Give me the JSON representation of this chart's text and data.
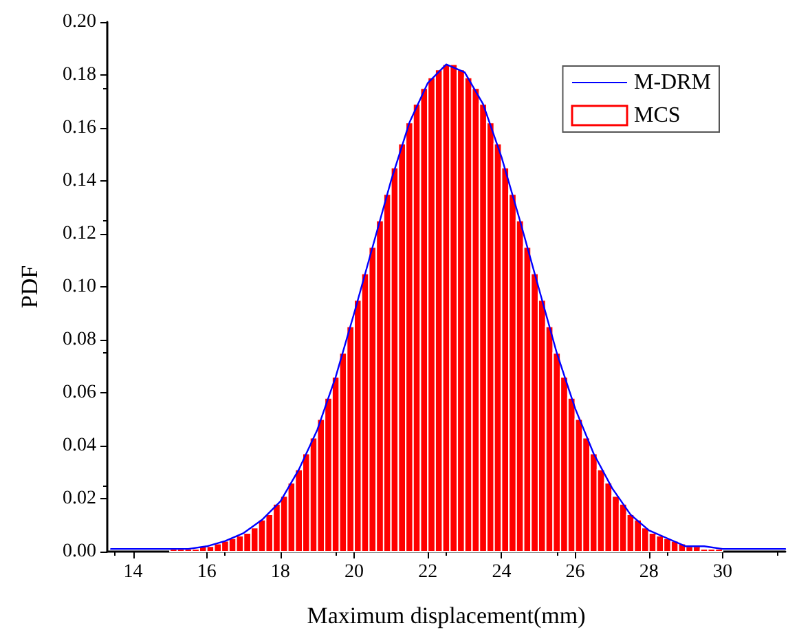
{
  "chart_data": {
    "type": "histogram",
    "xlabel": "Maximum displacement(mm)",
    "ylabel": "PDF",
    "bins": [
      15.0,
      15.2,
      15.4,
      15.6,
      15.8,
      16.0,
      16.2,
      16.4,
      16.6,
      16.8,
      17.0,
      17.2,
      17.4,
      17.6,
      17.8,
      18.0,
      18.2,
      18.4,
      18.6,
      18.8,
      19.0,
      19.2,
      19.4,
      19.6,
      19.8,
      20.0,
      20.2,
      20.4,
      20.6,
      20.8,
      21.0,
      21.2,
      21.4,
      21.6,
      21.8,
      22.0,
      22.2,
      22.4,
      22.6,
      22.8,
      23.0,
      23.2,
      23.4,
      23.6,
      23.8,
      24.0,
      24.2,
      24.4,
      24.6,
      24.8,
      25.0,
      25.2,
      25.4,
      25.6,
      25.8,
      26.0,
      26.2,
      26.4,
      26.6,
      26.8,
      27.0,
      27.2,
      27.4,
      27.6,
      27.8,
      28.0,
      28.2,
      28.4,
      28.6,
      28.8,
      29.0,
      29.2,
      29.4,
      29.6,
      29.8,
      30.0
    ],
    "series": [
      {
        "name": "M-DRM",
        "type": "line",
        "color": "#0000ff",
        "x": [
          13.4,
          14,
          15,
          15.5,
          16,
          16.5,
          17,
          17.5,
          18,
          18.5,
          19,
          19.5,
          20,
          20.5,
          21,
          21.5,
          22,
          22.5,
          23,
          23.5,
          24,
          24.5,
          25,
          25.5,
          26,
          26.5,
          27,
          27.5,
          28,
          28.5,
          29,
          29.5,
          30,
          31,
          31.7
        ],
        "values": [
          0.001,
          0.001,
          0.001,
          0.001,
          0.002,
          0.004,
          0.007,
          0.012,
          0.019,
          0.031,
          0.046,
          0.066,
          0.09,
          0.115,
          0.14,
          0.162,
          0.177,
          0.184,
          0.181,
          0.169,
          0.149,
          0.125,
          0.1,
          0.075,
          0.054,
          0.037,
          0.024,
          0.014,
          0.008,
          0.005,
          0.002,
          0.002,
          0.001,
          0.001,
          0.001
        ]
      },
      {
        "name": "MCS",
        "color": "#ff0000",
        "values": [
          0.001,
          0.001,
          0.001,
          0.001,
          0.002,
          0.002,
          0.003,
          0.004,
          0.005,
          0.006,
          0.007,
          0.009,
          0.012,
          0.014,
          0.018,
          0.021,
          0.026,
          0.031,
          0.037,
          0.043,
          0.05,
          0.058,
          0.066,
          0.075,
          0.085,
          0.095,
          0.105,
          0.115,
          0.125,
          0.135,
          0.145,
          0.154,
          0.162,
          0.169,
          0.175,
          0.179,
          0.182,
          0.184,
          0.184,
          0.182,
          0.179,
          0.175,
          0.169,
          0.162,
          0.154,
          0.145,
          0.135,
          0.125,
          0.115,
          0.105,
          0.095,
          0.085,
          0.075,
          0.066,
          0.058,
          0.05,
          0.043,
          0.037,
          0.031,
          0.026,
          0.021,
          0.018,
          0.014,
          0.012,
          0.009,
          0.007,
          0.006,
          0.005,
          0.004,
          0.003,
          0.002,
          0.002,
          0.001,
          0.001,
          0.001
        ]
      }
    ],
    "xlim": [
      13.3,
      31.7
    ],
    "xticks": [
      14,
      16,
      18,
      20,
      22,
      24,
      26,
      28,
      30
    ],
    "ylim": [
      0,
      0.2
    ],
    "yticks": [
      {
        "value": 0,
        "label": "0.00"
      },
      {
        "value": 0.02,
        "label": "0.02"
      },
      {
        "value": 0.04,
        "label": "0.04"
      },
      {
        "value": 0.06,
        "label": "0.06"
      },
      {
        "value": 0.08,
        "label": "0.08"
      },
      {
        "value": 0.1,
        "label": "0.10"
      },
      {
        "value": 0.12,
        "label": "0.12"
      },
      {
        "value": 0.14,
        "label": "0.14"
      },
      {
        "value": 0.16,
        "label": "0.16"
      },
      {
        "value": 0.18,
        "label": "0.18"
      },
      {
        "value": 0.2,
        "label": "0.20"
      }
    ],
    "legend": "top right",
    "grid": false,
    "marker": "none",
    "line_style": "solid"
  }
}
